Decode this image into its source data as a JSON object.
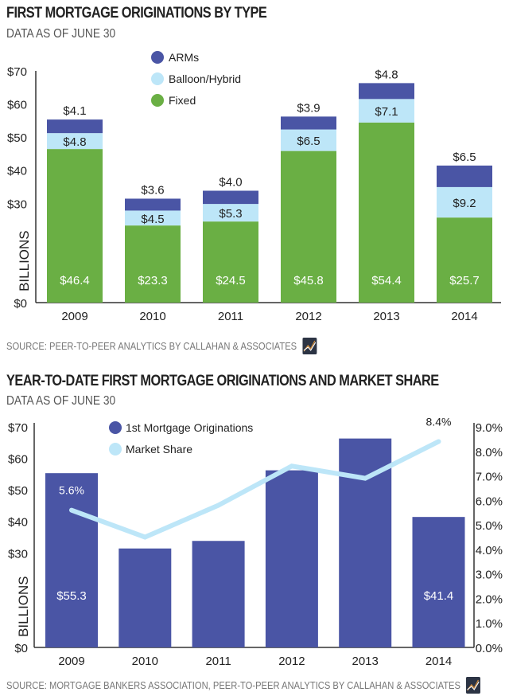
{
  "chart_data": [
    {
      "type": "bar",
      "stacked": true,
      "title": "FIRST MORTGAGE ORIGINATIONS BY TYPE",
      "subtitle": "DATA AS OF JUNE 30",
      "ylabel": "BILLIONS",
      "xlabel": "",
      "categories": [
        "2009",
        "2010",
        "2011",
        "2012",
        "2013",
        "2014"
      ],
      "ylim": [
        0,
        70
      ],
      "yticks": [
        {
          "value": 0,
          "label": "$0"
        },
        {
          "value": 30,
          "label": "$30"
        },
        {
          "value": 40,
          "label": "$40"
        },
        {
          "value": 50,
          "label": "$50"
        },
        {
          "value": 60,
          "label": "$60"
        },
        {
          "value": 70,
          "label": "$70"
        }
      ],
      "series": [
        {
          "name": "Fixed",
          "color": "#6aaf44",
          "values": [
            46.4,
            23.3,
            24.5,
            45.8,
            54.4,
            25.7
          ],
          "labels": [
            "$46.4",
            "$23.3",
            "$24.5",
            "$45.8",
            "$54.4",
            "$25.7"
          ]
        },
        {
          "name": "Balloon/Hybrid",
          "color": "#bde6f8",
          "values": [
            4.8,
            4.5,
            5.3,
            6.5,
            7.1,
            9.2
          ],
          "labels": [
            "$4.8",
            "$4.5",
            "$5.3",
            "$6.5",
            "$7.1",
            "$9.2"
          ]
        },
        {
          "name": "ARMs",
          "color": "#4a55a5",
          "values": [
            4.1,
            3.6,
            4.0,
            3.9,
            4.8,
            6.5
          ],
          "labels": [
            "$4.1",
            "$3.6",
            "$4.0",
            "$3.9",
            "$4.8",
            "$6.5"
          ]
        }
      ],
      "legend": {
        "position": "top-center",
        "order": [
          "ARMs",
          "Balloon/Hybrid",
          "Fixed"
        ]
      },
      "grid": false,
      "source": "SOURCE: PEER-TO-PEER ANALYTICS BY CALLAHAN & ASSOCIATES"
    },
    {
      "type": "bar+line",
      "title": "YEAR-TO-DATE FIRST MORTGAGE ORIGINATIONS AND MARKET SHARE",
      "subtitle": "DATA AS OF JUNE 30",
      "ylabel": "BILLIONS",
      "xlabel": "",
      "categories": [
        "2009",
        "2010",
        "2011",
        "2012",
        "2013",
        "2014"
      ],
      "ylim": [
        0,
        70
      ],
      "y2lim": [
        0,
        9
      ],
      "yticks": [
        {
          "value": 0,
          "label": "$0"
        },
        {
          "value": 30,
          "label": "$30"
        },
        {
          "value": 40,
          "label": "$40"
        },
        {
          "value": 50,
          "label": "$50"
        },
        {
          "value": 60,
          "label": "$60"
        },
        {
          "value": 70,
          "label": "$70"
        }
      ],
      "y2ticks": [
        {
          "value": 0,
          "label": "0.0%"
        },
        {
          "value": 1,
          "label": "1.0%"
        },
        {
          "value": 2,
          "label": "2.0%"
        },
        {
          "value": 3,
          "label": "3.0%"
        },
        {
          "value": 4,
          "label": "4.0%"
        },
        {
          "value": 5,
          "label": "5.0%"
        },
        {
          "value": 6,
          "label": "6.0%"
        },
        {
          "value": 7,
          "label": "7.0%"
        },
        {
          "value": 8,
          "label": "8.0%"
        },
        {
          "value": 9,
          "label": "9.0%"
        }
      ],
      "series": [
        {
          "name": "1st Mortgage Originations",
          "kind": "bar",
          "color": "#4a55a5",
          "axis": "left",
          "values": [
            55.3,
            31.4,
            33.8,
            56.2,
            66.3,
            41.4
          ],
          "labels": [
            "$55.3",
            "",
            "",
            "",
            "",
            "$41.4"
          ]
        },
        {
          "name": "Market Share",
          "kind": "line",
          "color": "#bde6f8",
          "axis": "right",
          "values": [
            5.6,
            4.5,
            5.8,
            7.4,
            6.9,
            8.4
          ],
          "labels": [
            "5.6%",
            "",
            "",
            "",
            "",
            "8.4%"
          ]
        }
      ],
      "legend": {
        "position": "top-center",
        "order": [
          "1st Mortgage Originations",
          "Market Share"
        ]
      },
      "grid": false,
      "source": "SOURCE: MORTGAGE BANKERS ASSOCIATION, PEER-TO-PEER ANALYTICS BY CALLAHAN & ASSOCIATES"
    }
  ]
}
